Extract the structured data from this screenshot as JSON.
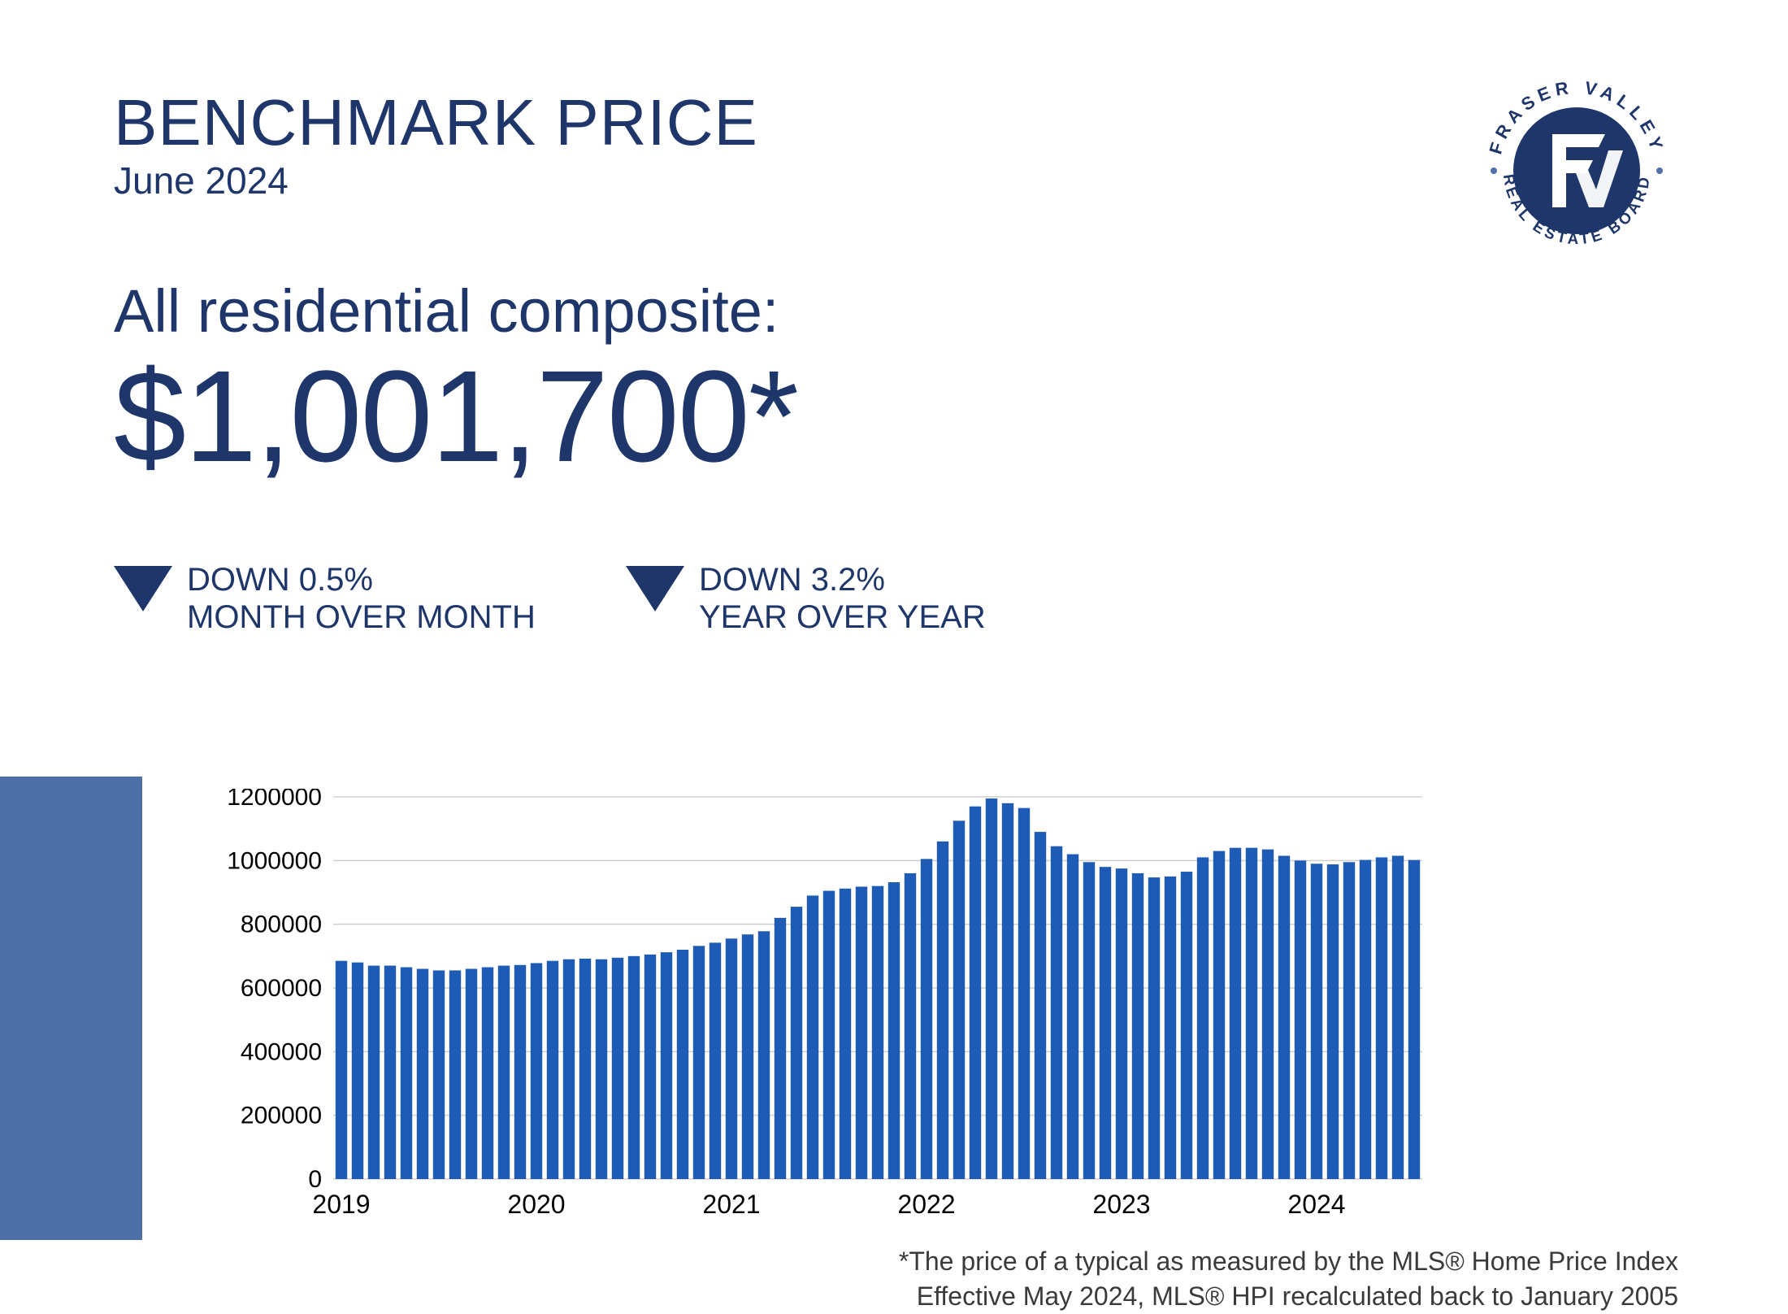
{
  "colors": {
    "primary": "#1e3669",
    "accent_blue": "#4f6fa8",
    "bar_color": "#1d5bb5",
    "grid_color": "#cfcfcf",
    "text_dark": "#1e3669",
    "footnote_color": "#3a3a3a",
    "background": "#ffffff"
  },
  "header": {
    "title": "BENCHMARK PRICE",
    "subtitle": "June 2024"
  },
  "composite": {
    "label": "All residential composite:",
    "price_display": "$1,001,700*"
  },
  "stats": {
    "mom": {
      "line1": "DOWN 0.5%",
      "line2": "MONTH OVER MONTH",
      "direction": "down"
    },
    "yoy": {
      "line1": "DOWN 3.2%",
      "line2": "YEAR OVER YEAR",
      "direction": "down"
    }
  },
  "logo": {
    "outer_text_top": "FRASER VALLEY",
    "outer_text_bottom": "REAL ESTATE BOARD",
    "monogram": "FV"
  },
  "footnote": {
    "line1": "*The price of a typical as measured by the MLS® Home Price Index",
    "line2": "Effective May 2024, MLS® HPI recalculated back to January 2005"
  },
  "chart": {
    "type": "bar",
    "y_axis": {
      "min": 0,
      "max": 1200000,
      "tick_step": 200000,
      "ticks": [
        0,
        200000,
        400000,
        600000,
        800000,
        1000000,
        1200000
      ]
    },
    "x_axis": {
      "year_labels": [
        "2019",
        "2020",
        "2021",
        "2022",
        "2023",
        "2024"
      ]
    },
    "bar_gap_ratio": 0.28,
    "values": [
      685000,
      680000,
      670000,
      670000,
      665000,
      660000,
      655000,
      655000,
      660000,
      665000,
      670000,
      672000,
      678000,
      685000,
      690000,
      692000,
      690000,
      695000,
      700000,
      705000,
      712000,
      720000,
      732000,
      742000,
      755000,
      768000,
      778000,
      820000,
      855000,
      890000,
      905000,
      912000,
      918000,
      920000,
      932000,
      960000,
      1005000,
      1060000,
      1125000,
      1170000,
      1195000,
      1180000,
      1165000,
      1090000,
      1045000,
      1020000,
      995000,
      980000,
      975000,
      960000,
      947000,
      950000,
      965000,
      1010000,
      1030000,
      1040000,
      1040000,
      1035000,
      1015000,
      1000000,
      990000,
      988000,
      995000,
      1002000,
      1010000,
      1015000,
      1001700
    ]
  }
}
